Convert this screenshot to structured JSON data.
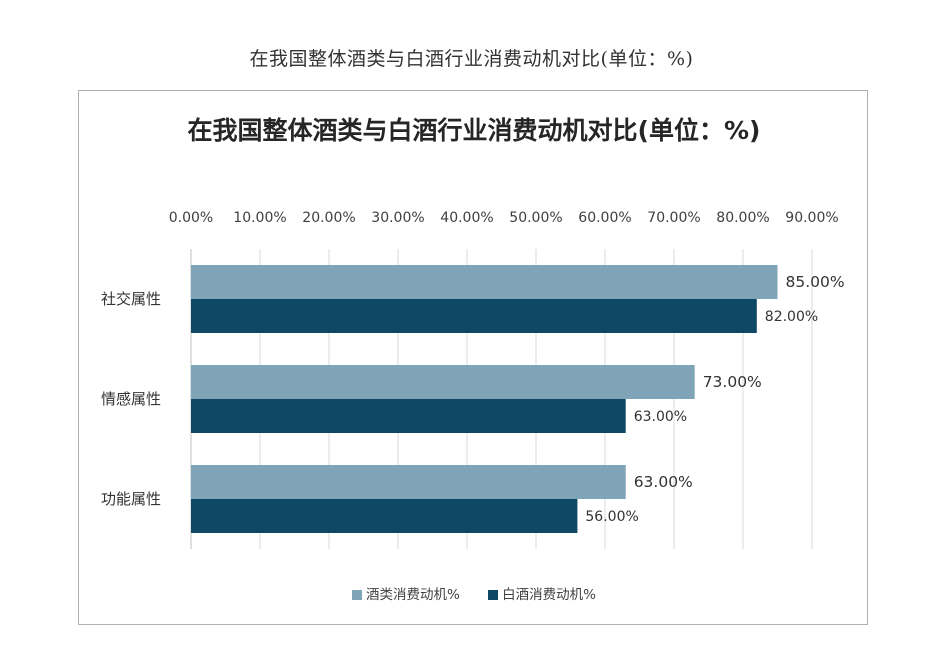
{
  "page_title": "在我国整体酒类与白酒行业消费动机对比(单位：%)",
  "chart_data": {
    "type": "bar",
    "orientation": "horizontal",
    "title": "在我国整体酒类与白酒行业消费动机对比(单位：%)",
    "categories": [
      "社交属性",
      "情感属性",
      "功能属性"
    ],
    "series": [
      {
        "name": "酒类消费动机%",
        "values": [
          85,
          73,
          63
        ],
        "labels": [
          "85.00%",
          "73.00%",
          "63.00%"
        ],
        "color": "#7fa4b8"
      },
      {
        "name": "白酒消费动机%",
        "values": [
          82,
          63,
          56
        ],
        "labels": [
          "82.00%",
          "63.00%",
          "56.00%"
        ],
        "color": "#0e4864"
      }
    ],
    "xlim": [
      0,
      90
    ],
    "x_ticks": [
      0,
      10,
      20,
      30,
      40,
      50,
      60,
      70,
      80,
      90
    ],
    "x_tick_labels": [
      "0.00%",
      "10.00%",
      "20.00%",
      "30.00%",
      "40.00%",
      "50.00%",
      "60.00%",
      "70.00%",
      "80.00%",
      "90.00%"
    ],
    "x_axis_position": "top",
    "grid": true,
    "legend_position": "bottom"
  }
}
